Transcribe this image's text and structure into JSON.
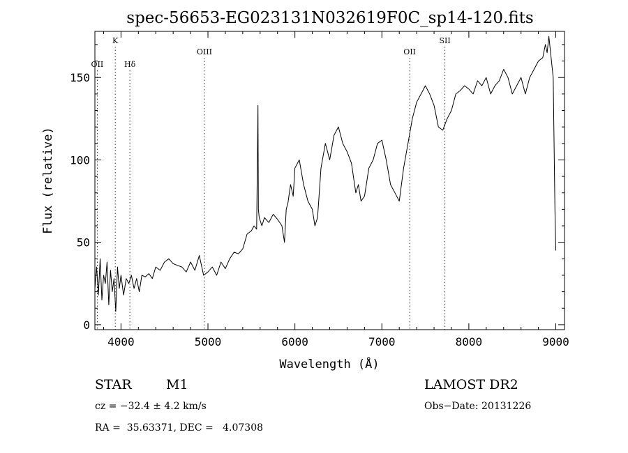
{
  "chart_data": {
    "type": "line",
    "title": "spec-56653-EG023131N032619F0C_sp14-120.fits",
    "xlabel": "Wavelength (Å)",
    "ylabel": "Flux (relative)",
    "xlim": [
      3700,
      9100
    ],
    "ylim": [
      -3,
      178
    ],
    "x_ticks": [
      4000,
      5000,
      6000,
      7000,
      8000,
      9000
    ],
    "y_ticks": [
      0,
      50,
      100,
      150
    ],
    "grid": false,
    "series": [
      {
        "x": [
          3700,
          3720,
          3740,
          3760,
          3780,
          3800,
          3820,
          3840,
          3860,
          3880,
          3900,
          3920,
          3940,
          3960,
          3980,
          4000,
          4030,
          4060,
          4090,
          4120,
          4150,
          4180,
          4210,
          4240,
          4280,
          4320,
          4360,
          4400,
          4450,
          4500,
          4550,
          4600,
          4650,
          4700,
          4750,
          4800,
          4850,
          4900,
          4950,
          5000,
          5050,
          5100,
          5150,
          5200,
          5250,
          5300,
          5350,
          5400,
          5450,
          5500,
          5530,
          5560,
          5575,
          5580,
          5590,
          5620,
          5650,
          5700,
          5750,
          5800,
          5850,
          5880,
          5900,
          5920,
          5950,
          5980,
          6000,
          6050,
          6100,
          6150,
          6200,
          6230,
          6260,
          6300,
          6350,
          6400,
          6450,
          6500,
          6550,
          6600,
          6650,
          6700,
          6730,
          6760,
          6800,
          6850,
          6900,
          6950,
          7000,
          7050,
          7100,
          7150,
          7200,
          7250,
          7300,
          7350,
          7400,
          7450,
          7500,
          7550,
          7600,
          7650,
          7700,
          7750,
          7800,
          7850,
          7900,
          7950,
          8000,
          8050,
          8100,
          8150,
          8200,
          8250,
          8300,
          8350,
          8400,
          8450,
          8500,
          8550,
          8600,
          8650,
          8700,
          8750,
          8800,
          8850,
          8880,
          8900,
          8920,
          8950,
          8970,
          8990,
          9000
        ],
        "y": [
          22,
          35,
          18,
          40,
          15,
          30,
          25,
          38,
          12,
          33,
          20,
          28,
          8,
          35,
          22,
          30,
          18,
          28,
          25,
          30,
          22,
          28,
          20,
          30,
          29,
          31,
          28,
          35,
          33,
          38,
          40,
          37,
          36,
          35,
          32,
          38,
          33,
          42,
          30,
          32,
          35,
          30,
          38,
          34,
          40,
          44,
          43,
          46,
          55,
          57,
          60,
          58,
          133,
          70,
          65,
          60,
          65,
          62,
          67,
          64,
          60,
          50,
          70,
          74,
          85,
          78,
          95,
          100,
          85,
          75,
          70,
          60,
          65,
          95,
          110,
          100,
          115,
          120,
          110,
          105,
          98,
          80,
          85,
          75,
          78,
          95,
          100,
          110,
          112,
          100,
          85,
          80,
          75,
          95,
          110,
          125,
          135,
          140,
          145,
          140,
          133,
          120,
          118,
          125,
          130,
          140,
          142,
          145,
          143,
          140,
          148,
          145,
          150,
          140,
          145,
          148,
          155,
          150,
          140,
          145,
          150,
          140,
          150,
          155,
          160,
          162,
          170,
          165,
          175,
          160,
          150,
          70,
          45
        ]
      }
    ],
    "line_markers": [
      {
        "label": "OII",
        "x": 3727,
        "row": "low"
      },
      {
        "label": "K",
        "x": 3934,
        "row": "high"
      },
      {
        "label": "Hδ",
        "x": 4102,
        "row": "low"
      },
      {
        "label": "OIII",
        "x": 4959,
        "row": "mid"
      },
      {
        "label": "OII",
        "x": 7320,
        "row": "mid"
      },
      {
        "label": "SII",
        "x": 7725,
        "row": "high"
      }
    ]
  },
  "info": {
    "object_class": "STAR",
    "subclass": "M1",
    "survey": "LAMOST DR2",
    "cz": "cz = −32.4 ± 4.2 km/s",
    "obs_date": "Obs−Date: 20131226",
    "coords": "RA =  35.63371, DEC =   4.07308"
  }
}
